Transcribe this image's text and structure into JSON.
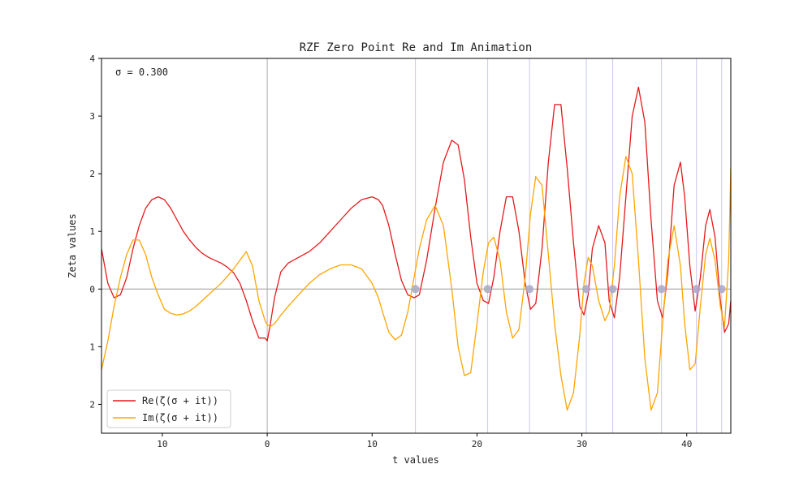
{
  "chart_data": {
    "type": "line",
    "title": "RZF Zero Point Re and Im Animation",
    "xlabel": "t values",
    "ylabel": "Zeta values",
    "annotation": "σ = 0.300",
    "xlim": [
      -15.8,
      44.2
    ],
    "ylim": [
      -2.5,
      4.0
    ],
    "xticks": [
      -10,
      0,
      10,
      20,
      30,
      40
    ],
    "xtick_labels": [
      "10",
      "0",
      "10",
      "20",
      "30",
      "40"
    ],
    "yticks": [
      -2,
      -1,
      0,
      1,
      2,
      3,
      4
    ],
    "ytick_labels": [
      "2",
      "1",
      "0",
      "1",
      "2",
      "3",
      "4"
    ],
    "grid": false,
    "legend_position": "lower-left",
    "zeros_t": [
      14.13,
      21.02,
      25.01,
      30.42,
      32.94,
      37.59,
      40.92,
      43.33
    ],
    "series": [
      {
        "name": "Re(ζ(σ + it))",
        "color": "#e41a1c",
        "x": [
          -15.8,
          -15.2,
          -14.6,
          -14.0,
          -13.4,
          -12.8,
          -12.2,
          -11.6,
          -11.0,
          -10.4,
          -9.8,
          -9.2,
          -8.6,
          -8.0,
          -7.4,
          -6.8,
          -6.2,
          -5.6,
          -5.0,
          -4.4,
          -3.8,
          -3.2,
          -2.6,
          -2.0,
          -1.4,
          -0.8,
          -0.2,
          0.0,
          0.3,
          0.7,
          1.3,
          2.0,
          3.0,
          4.0,
          5.0,
          6.0,
          7.0,
          8.0,
          9.0,
          10.0,
          10.6,
          11.0,
          11.6,
          12.2,
          12.8,
          13.4,
          14.0,
          14.5,
          15.2,
          16.0,
          16.8,
          17.6,
          18.2,
          18.8,
          19.4,
          20.0,
          20.6,
          21.1,
          21.6,
          22.2,
          22.8,
          23.4,
          24.0,
          24.6,
          25.1,
          25.6,
          26.2,
          26.8,
          27.4,
          28.0,
          28.6,
          29.2,
          29.8,
          30.2,
          30.6,
          31.0,
          31.6,
          32.2,
          32.6,
          33.1,
          33.6,
          34.2,
          34.8,
          35.4,
          36.0,
          36.6,
          37.2,
          37.7,
          38.2,
          38.8,
          39.4,
          39.8,
          40.3,
          40.8,
          41.3,
          41.8,
          42.2,
          42.7,
          43.2,
          43.6,
          44.0,
          44.2
        ],
        "y": [
          0.7,
          0.1,
          -0.15,
          -0.1,
          0.2,
          0.7,
          1.1,
          1.4,
          1.55,
          1.6,
          1.55,
          1.4,
          1.2,
          1.0,
          0.85,
          0.72,
          0.62,
          0.55,
          0.5,
          0.45,
          0.38,
          0.28,
          0.1,
          -0.2,
          -0.55,
          -0.85,
          -0.85,
          -0.9,
          -0.6,
          -0.15,
          0.3,
          0.45,
          0.55,
          0.65,
          0.8,
          1.0,
          1.2,
          1.4,
          1.55,
          1.6,
          1.55,
          1.45,
          1.1,
          0.6,
          0.15,
          -0.1,
          -0.15,
          -0.1,
          0.5,
          1.4,
          2.2,
          2.58,
          2.5,
          1.9,
          0.9,
          0.1,
          -0.2,
          -0.25,
          0.2,
          1.0,
          1.6,
          1.6,
          1.0,
          0.1,
          -0.35,
          -0.25,
          0.7,
          2.2,
          3.2,
          3.2,
          2.1,
          0.8,
          -0.3,
          -0.45,
          -0.1,
          0.7,
          1.1,
          0.8,
          -0.2,
          -0.5,
          0.2,
          1.6,
          3.0,
          3.5,
          2.9,
          1.2,
          -0.2,
          -0.5,
          0.3,
          1.8,
          2.2,
          1.6,
          0.4,
          -0.38,
          0.2,
          1.1,
          1.38,
          0.9,
          -0.2,
          -0.75,
          -0.6,
          -0.2
        ]
      },
      {
        "name": "Im(ζ(σ + it))",
        "color": "#ffa500",
        "x": [
          -15.8,
          -15.2,
          -14.6,
          -14.0,
          -13.4,
          -12.8,
          -12.2,
          -11.6,
          -11.0,
          -10.4,
          -9.8,
          -9.2,
          -8.6,
          -8.0,
          -7.4,
          -6.8,
          -6.2,
          -5.6,
          -5.0,
          -4.4,
          -3.8,
          -3.2,
          -2.6,
          -2.0,
          -1.4,
          -0.8,
          -0.2,
          0.0,
          0.3,
          0.7,
          1.3,
          2.0,
          3.0,
          4.0,
          5.0,
          6.0,
          7.0,
          8.0,
          9.0,
          10.0,
          10.6,
          11.0,
          11.6,
          12.2,
          12.8,
          13.4,
          14.0,
          14.5,
          15.2,
          16.0,
          16.8,
          17.6,
          18.2,
          18.8,
          19.4,
          20.0,
          20.6,
          21.1,
          21.6,
          22.2,
          22.8,
          23.4,
          24.0,
          24.6,
          25.1,
          25.6,
          26.2,
          26.8,
          27.4,
          28.0,
          28.6,
          29.2,
          29.8,
          30.2,
          30.6,
          31.0,
          31.6,
          32.2,
          32.6,
          33.1,
          33.6,
          34.2,
          34.8,
          35.4,
          36.0,
          36.6,
          37.2,
          37.7,
          38.2,
          38.8,
          39.4,
          39.8,
          40.3,
          40.8,
          41.3,
          41.8,
          42.2,
          42.7,
          43.2,
          43.6,
          44.0,
          44.2
        ],
        "y": [
          -1.4,
          -0.9,
          -0.3,
          0.2,
          0.6,
          0.85,
          0.85,
          0.6,
          0.2,
          -0.1,
          -0.35,
          -0.42,
          -0.45,
          -0.43,
          -0.38,
          -0.3,
          -0.2,
          -0.1,
          0.0,
          0.1,
          0.22,
          0.35,
          0.5,
          0.65,
          0.4,
          -0.2,
          -0.55,
          -0.62,
          -0.65,
          -0.6,
          -0.45,
          -0.3,
          -0.1,
          0.1,
          0.25,
          0.35,
          0.42,
          0.42,
          0.35,
          0.1,
          -0.15,
          -0.4,
          -0.75,
          -0.88,
          -0.8,
          -0.4,
          0.2,
          0.7,
          1.2,
          1.45,
          1.1,
          0.0,
          -1.0,
          -1.5,
          -1.45,
          -0.6,
          0.3,
          0.8,
          0.9,
          0.5,
          -0.4,
          -0.85,
          -0.7,
          0.2,
          1.3,
          1.95,
          1.8,
          0.6,
          -0.6,
          -1.5,
          -2.1,
          -1.8,
          -0.8,
          0.1,
          0.55,
          0.4,
          -0.2,
          -0.55,
          -0.4,
          0.4,
          1.6,
          2.3,
          2.0,
          0.5,
          -1.2,
          -2.1,
          -1.8,
          -0.6,
          0.5,
          1.1,
          0.4,
          -0.6,
          -1.4,
          -1.3,
          -0.3,
          0.6,
          0.88,
          0.5,
          -0.3,
          -0.65,
          0.5,
          2.1
        ]
      }
    ]
  }
}
